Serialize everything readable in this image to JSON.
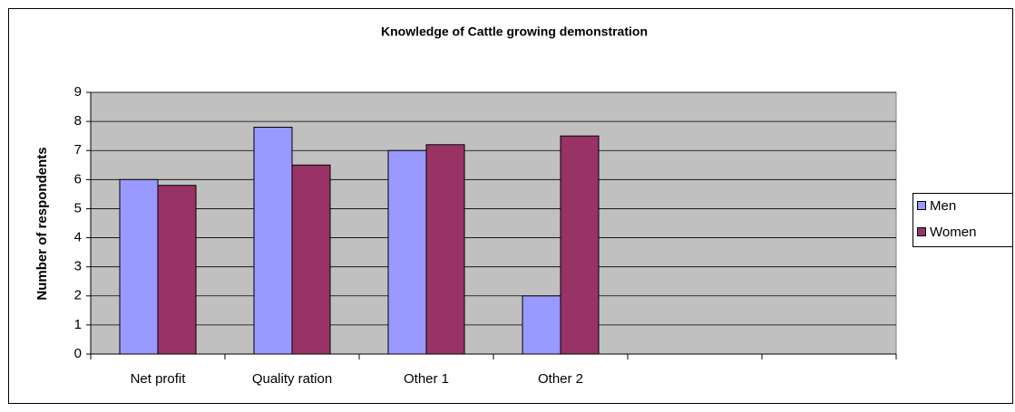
{
  "chart_data": {
    "type": "bar",
    "title": "Knowledge of Cattle growing demonstration",
    "y_label": "Number of respondents",
    "categories": [
      "Net profit",
      "Quality ration",
      "Other 1",
      "Other 2",
      null,
      null
    ],
    "series": [
      {
        "name": "Men",
        "color": "#9999ff",
        "values": [
          6,
          7.8,
          7,
          2,
          null,
          null
        ]
      },
      {
        "name": "Women",
        "color": "#993366",
        "values": [
          5.8,
          6.5,
          7.2,
          7.5,
          null,
          null
        ]
      }
    ],
    "ylim": [
      0,
      9
    ],
    "yticks": [
      0,
      1,
      2,
      3,
      4,
      5,
      6,
      7,
      8,
      9
    ],
    "grid": true,
    "legend": "right",
    "plot_background": "#c0c0c0"
  }
}
